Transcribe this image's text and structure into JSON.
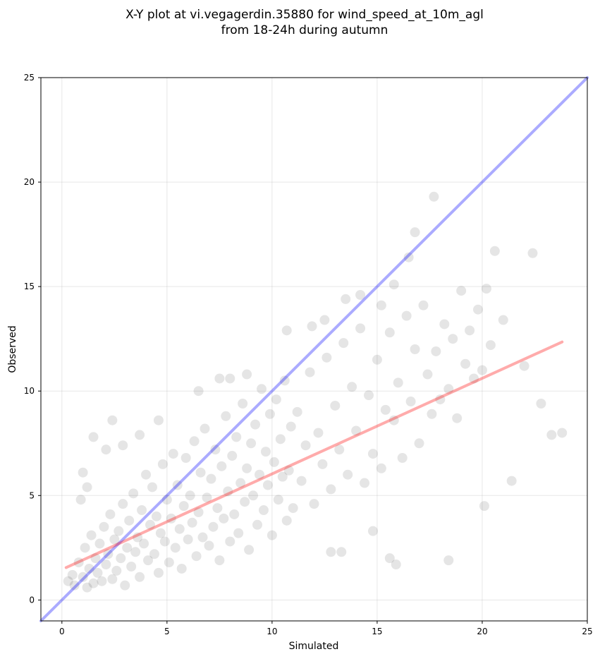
{
  "chart_data": {
    "type": "scatter",
    "title_line1": "X-Y plot at vi.vegagerdin.35880 for wind_speed_at_10m_agl",
    "title_line2": "from 18-24h during autumn",
    "xlabel": "Simulated",
    "ylabel": "Observed",
    "xlim": [
      -1,
      25
    ],
    "ylim": [
      -1,
      25
    ],
    "xticks": [
      0,
      5,
      10,
      15,
      20,
      25
    ],
    "yticks": [
      0,
      5,
      10,
      15,
      20,
      25
    ],
    "xtick_labels": [
      "0",
      "5",
      "10",
      "15",
      "20",
      "25"
    ],
    "ytick_labels": [
      "0",
      "5",
      "10",
      "15",
      "20",
      "25"
    ],
    "grid": true,
    "series": [
      {
        "kind": "scatter",
        "color": "#000000",
        "opacity": 0.1,
        "points": [
          [
            0.3,
            0.9
          ],
          [
            0.5,
            1.2
          ],
          [
            0.6,
            0.7
          ],
          [
            0.8,
            1.8
          ],
          [
            1.0,
            1.1
          ],
          [
            1.1,
            2.5
          ],
          [
            1.2,
            0.6
          ],
          [
            1.3,
            1.5
          ],
          [
            1.4,
            3.1
          ],
          [
            1.5,
            0.8
          ],
          [
            1.6,
            2.0
          ],
          [
            1.7,
            1.3
          ],
          [
            1.8,
            2.7
          ],
          [
            1.9,
            0.9
          ],
          [
            2.0,
            3.5
          ],
          [
            2.1,
            1.7
          ],
          [
            2.2,
            2.2
          ],
          [
            2.3,
            4.1
          ],
          [
            2.4,
            1.0
          ],
          [
            2.5,
            2.9
          ],
          [
            2.6,
            1.4
          ],
          [
            2.7,
            3.3
          ],
          [
            2.8,
            2.0
          ],
          [
            2.9,
            4.6
          ],
          [
            3.0,
            0.7
          ],
          [
            3.1,
            2.5
          ],
          [
            3.2,
            3.8
          ],
          [
            3.3,
            1.6
          ],
          [
            3.4,
            5.1
          ],
          [
            3.5,
            2.3
          ],
          [
            3.6,
            3.0
          ],
          [
            3.7,
            1.1
          ],
          [
            3.8,
            4.3
          ],
          [
            3.9,
            2.7
          ],
          [
            4.0,
            6.0
          ],
          [
            4.1,
            1.9
          ],
          [
            4.2,
            3.6
          ],
          [
            4.3,
            5.4
          ],
          [
            4.4,
            2.2
          ],
          [
            4.5,
            4.0
          ],
          [
            4.6,
            1.3
          ],
          [
            4.7,
            3.2
          ],
          [
            4.8,
            6.5
          ],
          [
            4.9,
            2.8
          ],
          [
            5.0,
            4.8
          ],
          [
            5.1,
            1.8
          ],
          [
            5.2,
            3.9
          ],
          [
            5.3,
            7.0
          ],
          [
            5.4,
            2.5
          ],
          [
            5.5,
            5.5
          ],
          [
            5.6,
            3.4
          ],
          [
            5.7,
            1.5
          ],
          [
            5.8,
            4.5
          ],
          [
            5.9,
            6.8
          ],
          [
            6.0,
            2.9
          ],
          [
            6.1,
            5.0
          ],
          [
            6.2,
            3.7
          ],
          [
            6.3,
            7.6
          ],
          [
            6.4,
            2.1
          ],
          [
            6.5,
            4.2
          ],
          [
            6.6,
            6.1
          ],
          [
            6.7,
            3.0
          ],
          [
            6.8,
            8.2
          ],
          [
            6.9,
            4.9
          ],
          [
            7.0,
            2.6
          ],
          [
            7.1,
            5.8
          ],
          [
            7.2,
            3.5
          ],
          [
            7.3,
            7.2
          ],
          [
            7.4,
            4.4
          ],
          [
            7.5,
            1.9
          ],
          [
            7.6,
            6.4
          ],
          [
            7.7,
            3.9
          ],
          [
            7.8,
            8.8
          ],
          [
            7.9,
            5.2
          ],
          [
            8.0,
            2.8
          ],
          [
            8.1,
            6.9
          ],
          [
            8.2,
            4.1
          ],
          [
            8.3,
            7.8
          ],
          [
            8.4,
            3.2
          ],
          [
            8.5,
            5.6
          ],
          [
            8.6,
            9.4
          ],
          [
            8.7,
            4.7
          ],
          [
            8.8,
            6.3
          ],
          [
            8.9,
            2.4
          ],
          [
            9.0,
            7.5
          ],
          [
            9.1,
            5.0
          ],
          [
            9.2,
            8.4
          ],
          [
            9.3,
            3.6
          ],
          [
            9.4,
            6.0
          ],
          [
            9.5,
            10.1
          ],
          [
            9.6,
            4.3
          ],
          [
            9.7,
            7.1
          ],
          [
            9.8,
            5.5
          ],
          [
            9.9,
            8.9
          ],
          [
            10.0,
            3.1
          ],
          [
            10.1,
            6.6
          ],
          [
            10.2,
            9.6
          ],
          [
            10.3,
            4.8
          ],
          [
            10.4,
            7.7
          ],
          [
            10.5,
            5.9
          ],
          [
            10.6,
            10.5
          ],
          [
            10.7,
            3.8
          ],
          [
            10.8,
            6.2
          ],
          [
            10.9,
            8.3
          ],
          [
            11.0,
            4.4
          ],
          [
            11.2,
            9.0
          ],
          [
            11.4,
            5.7
          ],
          [
            11.6,
            7.4
          ],
          [
            11.8,
            10.9
          ],
          [
            12.0,
            4.6
          ],
          [
            12.2,
            8.0
          ],
          [
            12.4,
            6.5
          ],
          [
            12.6,
            11.6
          ],
          [
            12.8,
            5.3
          ],
          [
            13.0,
            9.3
          ],
          [
            13.2,
            7.2
          ],
          [
            13.4,
            12.3
          ],
          [
            13.6,
            6.0
          ],
          [
            13.8,
            10.2
          ],
          [
            14.0,
            8.1
          ],
          [
            14.2,
            13.0
          ],
          [
            14.4,
            5.6
          ],
          [
            14.6,
            9.8
          ],
          [
            14.8,
            7.0
          ],
          [
            15.0,
            11.5
          ],
          [
            15.2,
            6.3
          ],
          [
            15.4,
            9.1
          ],
          [
            15.6,
            12.8
          ],
          [
            15.8,
            8.6
          ],
          [
            16.0,
            10.4
          ],
          [
            16.2,
            6.8
          ],
          [
            16.4,
            13.6
          ],
          [
            16.6,
            9.5
          ],
          [
            16.8,
            12.0
          ],
          [
            17.0,
            7.5
          ],
          [
            17.2,
            14.1
          ],
          [
            17.4,
            10.8
          ],
          [
            17.6,
            8.9
          ],
          [
            17.8,
            11.9
          ],
          [
            18.0,
            9.6
          ],
          [
            18.2,
            13.2
          ],
          [
            18.4,
            10.1
          ],
          [
            18.6,
            12.5
          ],
          [
            18.8,
            8.7
          ],
          [
            19.0,
            14.8
          ],
          [
            19.2,
            11.3
          ],
          [
            19.4,
            12.9
          ],
          [
            19.6,
            10.6
          ],
          [
            19.8,
            13.9
          ],
          [
            20.0,
            11.0
          ],
          [
            20.2,
            14.9
          ],
          [
            20.4,
            12.2
          ],
          [
            20.6,
            16.7
          ],
          [
            21.0,
            13.4
          ],
          [
            21.4,
            5.7
          ],
          [
            22.0,
            11.2
          ],
          [
            22.4,
            16.6
          ],
          [
            22.8,
            9.4
          ],
          [
            23.3,
            7.9
          ],
          [
            23.8,
            8.0
          ],
          [
            17.7,
            19.3
          ],
          [
            16.8,
            17.6
          ],
          [
            16.5,
            16.4
          ],
          [
            20.1,
            4.5
          ],
          [
            18.4,
            1.9
          ],
          [
            15.9,
            1.7
          ],
          [
            15.6,
            2.0
          ],
          [
            14.8,
            3.3
          ],
          [
            13.3,
            2.3
          ],
          [
            12.8,
            2.3
          ],
          [
            0.9,
            4.8
          ],
          [
            1.0,
            6.1
          ],
          [
            1.2,
            5.4
          ],
          [
            1.5,
            7.8
          ],
          [
            2.1,
            7.2
          ],
          [
            2.4,
            8.6
          ],
          [
            2.9,
            7.4
          ],
          [
            3.7,
            7.9
          ],
          [
            4.6,
            8.6
          ],
          [
            6.5,
            10.0
          ],
          [
            7.5,
            10.6
          ],
          [
            8.0,
            10.6
          ],
          [
            8.8,
            10.8
          ],
          [
            10.7,
            12.9
          ],
          [
            11.9,
            13.1
          ],
          [
            12.5,
            13.4
          ],
          [
            13.5,
            14.4
          ],
          [
            14.2,
            14.6
          ],
          [
            15.8,
            15.1
          ],
          [
            15.2,
            14.1
          ]
        ]
      },
      {
        "kind": "line",
        "name": "",
        "color": "#0000ff",
        "opacity": 0.33,
        "x": [
          -1,
          25
        ],
        "y": [
          -1,
          25
        ]
      },
      {
        "kind": "line",
        "name": "",
        "color": "#ff0000",
        "opacity": 0.33,
        "x": [
          0.2,
          23.8
        ],
        "y": [
          1.55,
          12.35
        ]
      }
    ]
  }
}
